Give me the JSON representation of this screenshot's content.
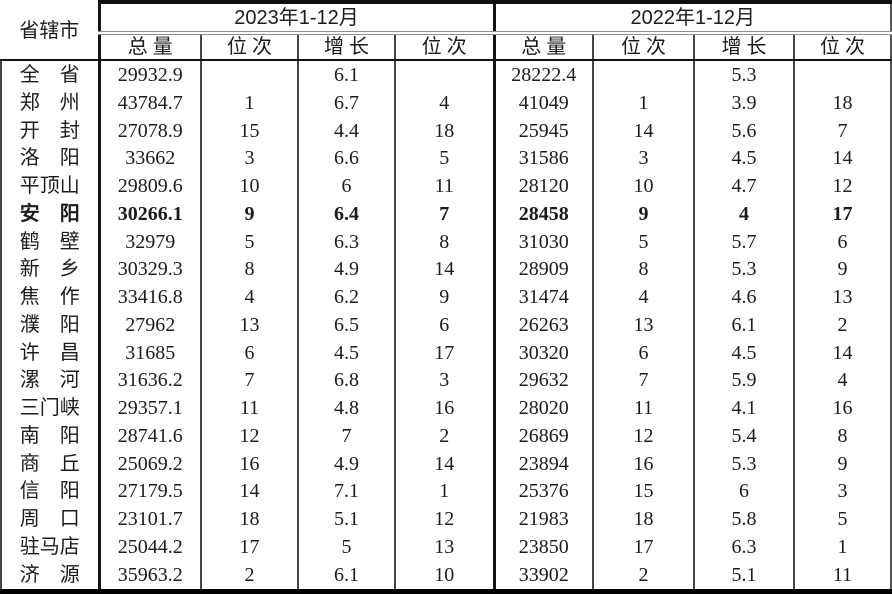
{
  "table": {
    "corner_header": "省辖市",
    "year_groups": [
      {
        "label": "2023年1-12月",
        "sub_headers": [
          "总 量",
          "位 次",
          "增 长",
          "位 次"
        ]
      },
      {
        "label": "2022年1-12月",
        "sub_headers": [
          "总 量",
          "位 次",
          "增 长",
          "位 次"
        ]
      }
    ],
    "column_keys": [
      "total-2023",
      "rank-total-2023",
      "growth-2023",
      "rank-growth-2023",
      "total-2022",
      "rank-total-2022",
      "growth-2022",
      "rank-growth-2022"
    ],
    "rows": [
      {
        "city": "全　省",
        "bold": false,
        "values": [
          "29932.9",
          "",
          "6.1",
          "",
          "28222.4",
          "",
          "5.3",
          ""
        ]
      },
      {
        "city": "郑　州",
        "bold": false,
        "values": [
          "43784.7",
          "1",
          "6.7",
          "4",
          "41049",
          "1",
          "3.9",
          "18"
        ]
      },
      {
        "city": "开　封",
        "bold": false,
        "values": [
          "27078.9",
          "15",
          "4.4",
          "18",
          "25945",
          "14",
          "5.6",
          "7"
        ]
      },
      {
        "city": "洛　阳",
        "bold": false,
        "values": [
          "33662",
          "3",
          "6.6",
          "5",
          "31586",
          "3",
          "4.5",
          "14"
        ]
      },
      {
        "city": "平顶山",
        "bold": false,
        "values": [
          "29809.6",
          "10",
          "6",
          "11",
          "28120",
          "10",
          "4.7",
          "12"
        ]
      },
      {
        "city": "安　阳",
        "bold": true,
        "values": [
          "30266.1",
          "9",
          "6.4",
          "7",
          "28458",
          "9",
          "4",
          "17"
        ]
      },
      {
        "city": "鹤　壁",
        "bold": false,
        "values": [
          "32979",
          "5",
          "6.3",
          "8",
          "31030",
          "5",
          "5.7",
          "6"
        ]
      },
      {
        "city": "新　乡",
        "bold": false,
        "values": [
          "30329.3",
          "8",
          "4.9",
          "14",
          "28909",
          "8",
          "5.3",
          "9"
        ]
      },
      {
        "city": "焦　作",
        "bold": false,
        "values": [
          "33416.8",
          "4",
          "6.2",
          "9",
          "31474",
          "4",
          "4.6",
          "13"
        ]
      },
      {
        "city": "濮　阳",
        "bold": false,
        "values": [
          "27962",
          "13",
          "6.5",
          "6",
          "26263",
          "13",
          "6.1",
          "2"
        ]
      },
      {
        "city": "许　昌",
        "bold": false,
        "values": [
          "31685",
          "6",
          "4.5",
          "17",
          "30320",
          "6",
          "4.5",
          "14"
        ]
      },
      {
        "city": "漯　河",
        "bold": false,
        "values": [
          "31636.2",
          "7",
          "6.8",
          "3",
          "29632",
          "7",
          "5.9",
          "4"
        ]
      },
      {
        "city": "三门峡",
        "bold": false,
        "values": [
          "29357.1",
          "11",
          "4.8",
          "16",
          "28020",
          "11",
          "4.1",
          "16"
        ]
      },
      {
        "city": "南　阳",
        "bold": false,
        "values": [
          "28741.6",
          "12",
          "7",
          "2",
          "26869",
          "12",
          "5.4",
          "8"
        ]
      },
      {
        "city": "商　丘",
        "bold": false,
        "values": [
          "25069.2",
          "16",
          "4.9",
          "14",
          "23894",
          "16",
          "5.3",
          "9"
        ]
      },
      {
        "city": "信　阳",
        "bold": false,
        "values": [
          "27179.5",
          "14",
          "7.1",
          "1",
          "25376",
          "15",
          "6",
          "3"
        ]
      },
      {
        "city": "周　口",
        "bold": false,
        "values": [
          "23101.7",
          "18",
          "5.1",
          "12",
          "21983",
          "18",
          "5.8",
          "5"
        ]
      },
      {
        "city": "驻马店",
        "bold": false,
        "values": [
          "25044.2",
          "17",
          "5",
          "13",
          "23850",
          "17",
          "6.3",
          "1"
        ]
      },
      {
        "city": "济　源",
        "bold": false,
        "values": [
          "35963.2",
          "2",
          "6.1",
          "10",
          "33902",
          "2",
          "5.1",
          "11"
        ]
      }
    ]
  },
  "colors": {
    "border_heavy": "#141414",
    "border_thin": "#454545",
    "border_double_rule": "#8f8f8f",
    "text": "#1c1c1c",
    "background": "#ffffff"
  }
}
